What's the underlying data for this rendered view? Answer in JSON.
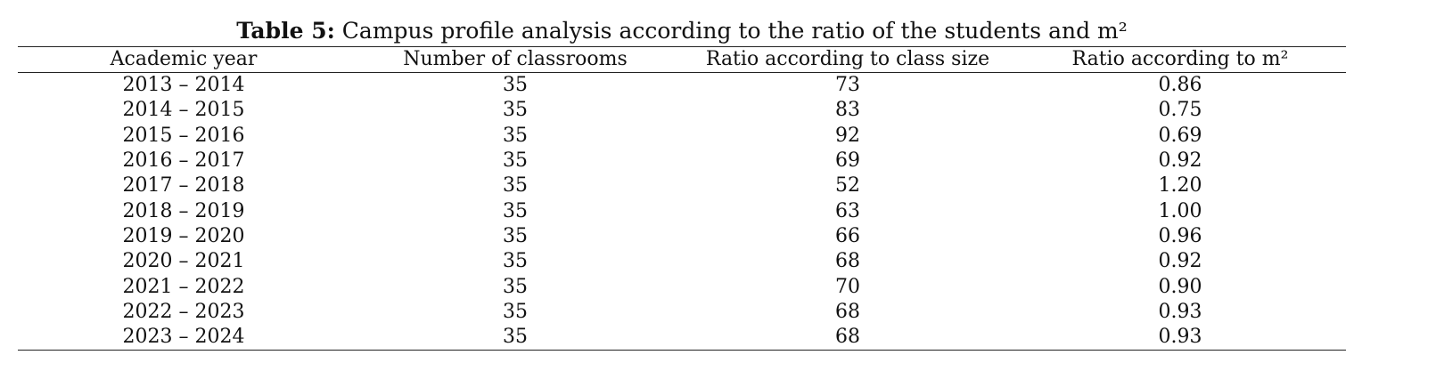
{
  "caption": {
    "label": "Table 5:",
    "text": " Campus profile analysis according to the ratio of the students and m²"
  },
  "table": {
    "headers": [
      "Academic year",
      "Number of classrooms",
      "Ratio according to class size",
      "Ratio according to m²"
    ],
    "rows": [
      [
        "2013 – 2014",
        "35",
        "73",
        "0.86"
      ],
      [
        "2014 – 2015",
        "35",
        "83",
        "0.75"
      ],
      [
        "2015 – 2016",
        "35",
        "92",
        "0.69"
      ],
      [
        "2016 – 2017",
        "35",
        "69",
        "0.92"
      ],
      [
        "2017 – 2018",
        "35",
        "52",
        "1.20"
      ],
      [
        "2018 – 2019",
        "35",
        "63",
        "1.00"
      ],
      [
        "2019 – 2020",
        "35",
        "66",
        "0.96"
      ],
      [
        "2020 – 2021",
        "35",
        "68",
        "0.92"
      ],
      [
        "2021 – 2022",
        "35",
        "70",
        "0.90"
      ],
      [
        "2022 – 2023",
        "35",
        "68",
        "0.93"
      ],
      [
        "2023 – 2024",
        "35",
        "68",
        "0.93"
      ]
    ]
  }
}
